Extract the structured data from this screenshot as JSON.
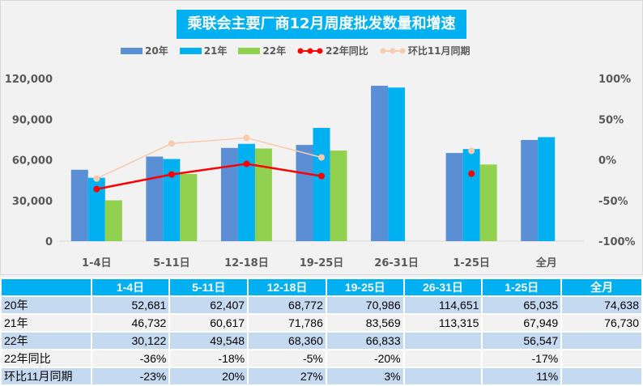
{
  "chart_data": {
    "type": "bar",
    "title": "乘联会主要厂商12月周度批发数量和增速",
    "categories": [
      "1-4日",
      "5-11日",
      "12-18日",
      "19-25日",
      "26-31日",
      "1-25日",
      "全月"
    ],
    "series": [
      {
        "name": "20年",
        "kind": "bar",
        "color": "#5b8fd5",
        "values": [
          52681,
          62407,
          68772,
          70986,
          114651,
          65035,
          74638
        ]
      },
      {
        "name": "21年",
        "kind": "bar",
        "color": "#00b0f0",
        "values": [
          46732,
          60617,
          71786,
          83569,
          113315,
          67949,
          76730
        ]
      },
      {
        "name": "22年",
        "kind": "bar",
        "color": "#92d050",
        "values": [
          30122,
          49548,
          68360,
          66833,
          null,
          56547,
          null
        ]
      },
      {
        "name": "22年同比",
        "kind": "line",
        "axis": "right",
        "color": "#ff0000",
        "values": [
          -36,
          -18,
          -5,
          -20,
          null,
          -17,
          null
        ]
      },
      {
        "name": "环比11月同期",
        "kind": "line",
        "axis": "right",
        "color": "#f8cbad",
        "values": [
          -23,
          20,
          27,
          3,
          null,
          11,
          null
        ]
      }
    ],
    "y_left": {
      "ticks": [
        "0",
        "30,000",
        "60,000",
        "90,000",
        "120,000"
      ],
      "range": [
        0,
        120000
      ]
    },
    "y_right": {
      "ticks": [
        "-100%",
        "-50%",
        "0%",
        "50%",
        "100%"
      ],
      "range": [
        -100,
        100
      ]
    },
    "legend_position": "top",
    "grid": false
  },
  "table": {
    "headers": [
      "",
      "1-4日",
      "5-11日",
      "12-18日",
      "19-25日",
      "26-31日",
      "1-25日",
      "全月"
    ],
    "rows": [
      [
        "20年",
        "52,681",
        "62,407",
        "68,772",
        "70,986",
        "114,651",
        "65,035",
        "74,638"
      ],
      [
        "21年",
        "46,732",
        "60,617",
        "71,786",
        "83,569",
        "113,315",
        "67,949",
        "76,730"
      ],
      [
        "22年",
        "30,122",
        "49,548",
        "68,360",
        "66,833",
        "",
        "56,547",
        ""
      ],
      [
        "22年同比",
        "-36%",
        "-18%",
        "-5%",
        "-20%",
        "",
        "-17%",
        ""
      ],
      [
        "环比11月同期",
        "-23%",
        "20%",
        "27%",
        "3%",
        "",
        "11%",
        ""
      ]
    ]
  }
}
